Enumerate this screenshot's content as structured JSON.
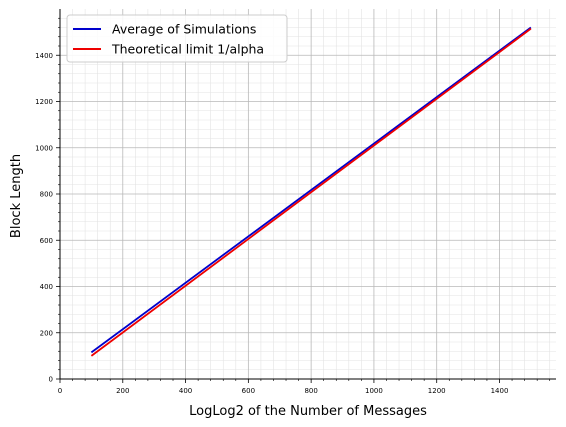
{
  "chart_data": {
    "type": "line",
    "title": "",
    "xlabel": "LogLog2 of the Number of Messages",
    "ylabel": "Block Length",
    "xlim": [
      0,
      1580
    ],
    "ylim": [
      0,
      1600
    ],
    "x_ticks": [
      0,
      200,
      400,
      600,
      800,
      1000,
      1200,
      1400
    ],
    "y_ticks": [
      0,
      200,
      400,
      600,
      800,
      1000,
      1200,
      1400
    ],
    "x_tick_labels": [
      "0",
      "200",
      "400",
      "600",
      "800",
      "1000",
      "1200",
      "1400"
    ],
    "y_tick_labels": [
      "0",
      "200",
      "400",
      "600",
      "800",
      "1000",
      "1200",
      "1400"
    ],
    "grid": {
      "major": true,
      "minor": true
    },
    "legend_position": "top-left",
    "series": [
      {
        "name": "Average of Simulations",
        "color": "#0000cc",
        "x": [
          100,
          1500
        ],
        "y": [
          115,
          1520
        ]
      },
      {
        "name": "Theoretical limit 1/alpha",
        "color": "#ee0000",
        "x": [
          100,
          1500
        ],
        "y": [
          100,
          1515
        ]
      }
    ]
  }
}
